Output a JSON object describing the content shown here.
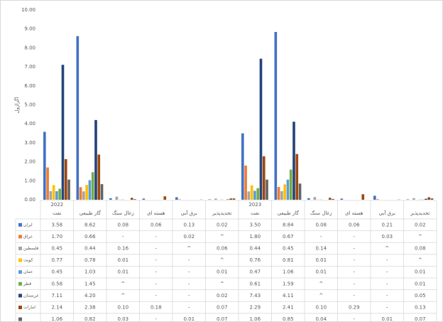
{
  "chart_data": {
    "type": "bar",
    "y_label": "اگزاژول",
    "groups": [
      "2022",
      "2023"
    ],
    "categories": [
      "نفت",
      "گاز طبیعی",
      "زغال سنگ",
      "هسته ای",
      "برق آبی",
      "تجدیدپذیر",
      "نفت",
      "گاز طبیعی",
      "زغال سنگ",
      "هسته ای",
      "برق آبی",
      "تجدیدپذیر"
    ],
    "ylim": [
      0,
      10
    ],
    "yticks": [
      {
        "value": 0,
        "label": "0.00"
      },
      {
        "value": 1,
        "label": "1.00"
      },
      {
        "value": 2,
        "label": "2.00"
      },
      {
        "value": 3,
        "label": "3.00"
      },
      {
        "value": 4,
        "label": "4.00"
      },
      {
        "value": 5,
        "label": "5.00"
      },
      {
        "value": 6,
        "label": "6.00"
      },
      {
        "value": 7,
        "label": "7.00"
      },
      {
        "value": 8,
        "label": "8.00"
      },
      {
        "value": 9,
        "label": "9.00"
      },
      {
        "value": 10,
        "label": "10.00"
      }
    ],
    "grid": false,
    "series": [
      {
        "name": "ایران",
        "color": "#4472c4",
        "values": [
          3.58,
          8.62,
          0.08,
          0.06,
          0.13,
          0.02,
          3.5,
          8.84,
          0.08,
          0.06,
          0.21,
          0.02
        ],
        "value_labels": [
          "3.58",
          "8.62",
          "0.08",
          "0.06",
          "0.13",
          "0.02",
          "3.50",
          "8.84",
          "0.08",
          "0.06",
          "0.21",
          "0.02"
        ]
      },
      {
        "name": "عراق",
        "color": "#ed7d31",
        "values": [
          1.7,
          0.66,
          null,
          null,
          0.02,
          null,
          1.8,
          0.67,
          null,
          null,
          0.03,
          null
        ],
        "value_labels": [
          "1.70",
          "0.66",
          "-",
          "-",
          "0.02",
          "^",
          "1.80",
          "0.67",
          "-",
          "-",
          "0.03",
          "^"
        ]
      },
      {
        "name": "فلسطین",
        "color": "#a5a5a5",
        "values": [
          0.45,
          0.44,
          0.16,
          null,
          null,
          0.06,
          0.44,
          0.45,
          0.14,
          null,
          null,
          0.08
        ],
        "value_labels": [
          "0.45",
          "0.44",
          "0.16",
          "-",
          "^",
          "0.06",
          "0.44",
          "0.45",
          "0.14",
          "-",
          "^",
          "0.08"
        ]
      },
      {
        "name": "کویت",
        "color": "#ffc000",
        "values": [
          0.77,
          0.78,
          0.01,
          null,
          null,
          null,
          0.76,
          0.81,
          0.01,
          null,
          null,
          null
        ],
        "value_labels": [
          "0.77",
          "0.78",
          "0.01",
          "-",
          "-",
          "^",
          "0.76",
          "0.81",
          "0.01",
          "-",
          "-",
          "^"
        ]
      },
      {
        "name": "عمان",
        "color": "#5b9bd5",
        "values": [
          0.45,
          1.03,
          0.01,
          null,
          null,
          0.01,
          0.47,
          1.06,
          0.01,
          null,
          null,
          0.01
        ],
        "value_labels": [
          "0.45",
          "1.03",
          "0.01",
          "-",
          "-",
          "0.01",
          "0.47",
          "1.06",
          "0.01",
          "-",
          "-",
          "0.01"
        ]
      },
      {
        "name": "قطر",
        "color": "#70ad47",
        "values": [
          0.58,
          1.45,
          null,
          null,
          null,
          null,
          0.61,
          1.59,
          null,
          null,
          null,
          0.01
        ],
        "value_labels": [
          "0.58",
          "1.45",
          "^",
          "-",
          "-",
          "^",
          "0.61",
          "1.59",
          "^",
          "-",
          "-",
          "0.01"
        ]
      },
      {
        "name": "عربستان",
        "color": "#264478",
        "values": [
          7.11,
          4.2,
          null,
          null,
          null,
          0.02,
          7.43,
          4.11,
          null,
          null,
          null,
          0.05
        ],
        "value_labels": [
          "7.11",
          "4.20",
          "^",
          "-",
          "-",
          "0.02",
          "7.43",
          "4.11",
          "^",
          "-",
          "-",
          "0.05"
        ]
      },
      {
        "name": "امارات",
        "color": "#9e480e",
        "values": [
          2.14,
          2.38,
          0.1,
          0.18,
          null,
          0.07,
          2.29,
          2.41,
          0.1,
          0.29,
          null,
          0.13
        ],
        "value_labels": [
          "2.14",
          "2.38",
          "0.10",
          "0.18",
          "-",
          "0.07",
          "2.29",
          "2.41",
          "0.10",
          "0.29",
          "-",
          "0.13"
        ]
      },
      {
        "name": null,
        "color": "#636363",
        "values": [
          1.06,
          0.82,
          0.03,
          null,
          0.01,
          0.07,
          1.06,
          0.85,
          0.04,
          null,
          0.01,
          0.07
        ],
        "value_labels": [
          "1.06",
          "0.82",
          "0.03",
          "-",
          "0.01",
          "0.07",
          "1.06",
          "0.85",
          "0.04",
          "-",
          "0.01",
          "0.07"
        ]
      }
    ]
  }
}
